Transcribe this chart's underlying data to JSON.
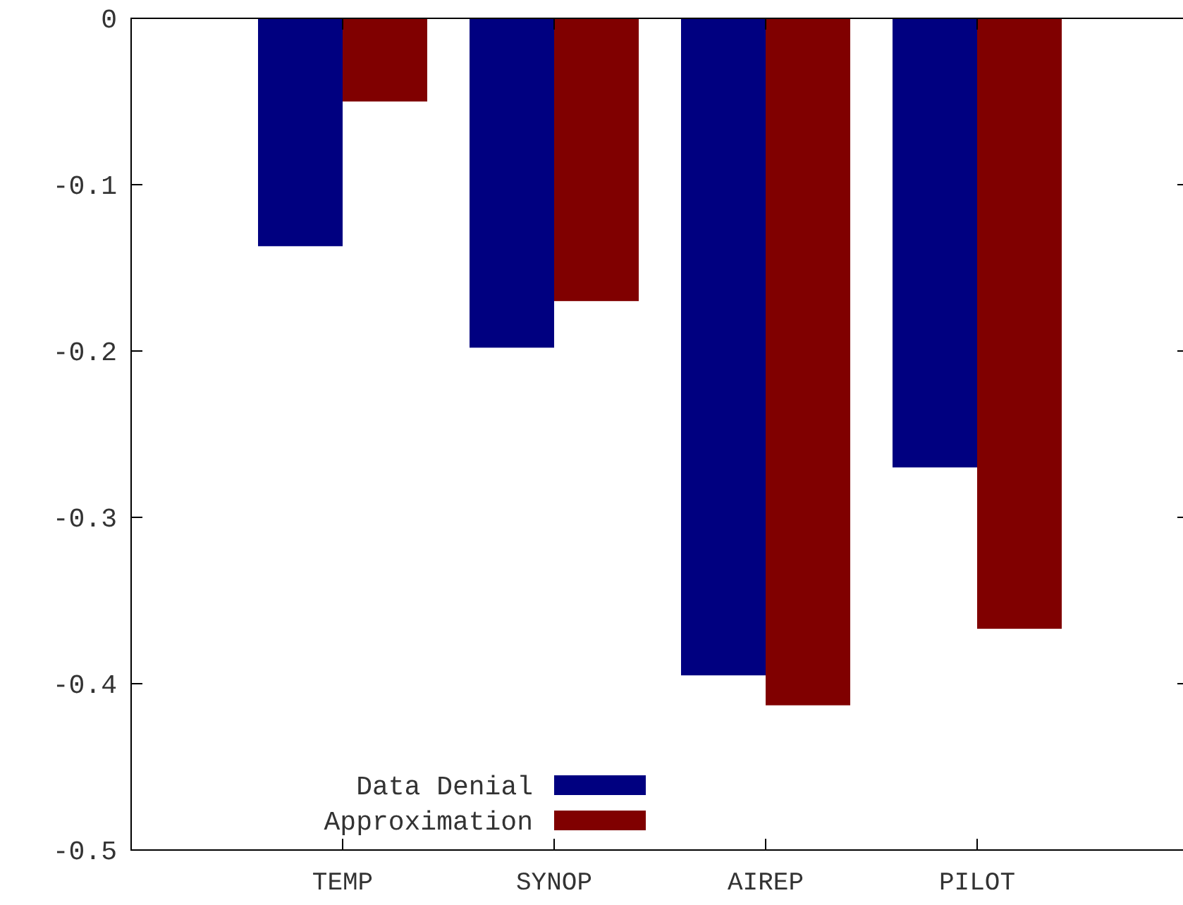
{
  "chart_data": {
    "type": "bar",
    "categories": [
      "TEMP",
      "SYNOP",
      "AIREP",
      "PILOT"
    ],
    "series": [
      {
        "name": "Data Denial",
        "color": "#000080",
        "values": [
          -0.137,
          -0.198,
          -0.395,
          -0.27
        ]
      },
      {
        "name": "Approximation",
        "color": "#800000",
        "values": [
          -0.05,
          -0.17,
          -0.413,
          -0.367
        ]
      }
    ],
    "ylim": [
      -0.5,
      0
    ],
    "yticks": [
      0,
      -0.1,
      -0.2,
      -0.3,
      -0.4,
      -0.5
    ],
    "grid": false,
    "legend": "bottom left"
  }
}
